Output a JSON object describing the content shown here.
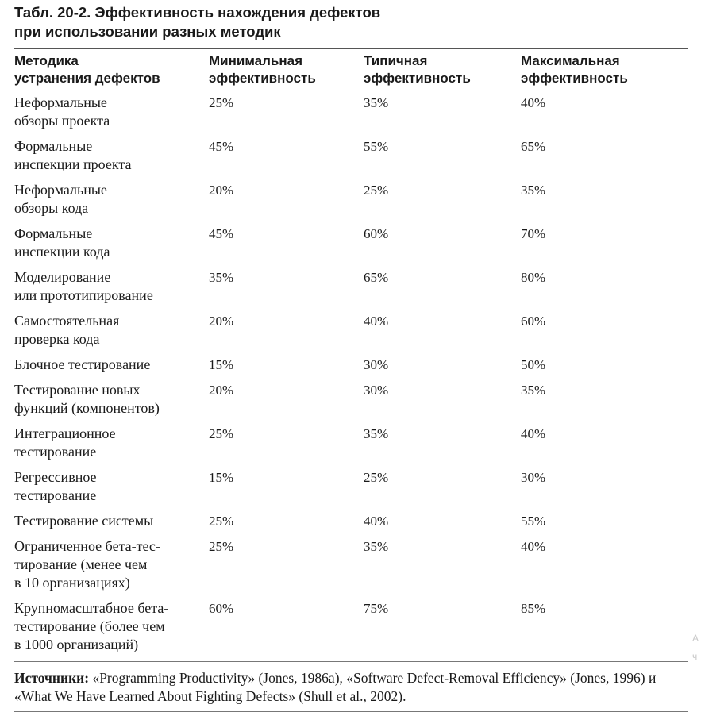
{
  "title": {
    "line1": "Табл. 20-2.   Эффективность нахождения дефектов",
    "line2": "при использовании разных методик"
  },
  "table": {
    "headers": [
      {
        "line1": "Методика",
        "line2": "устранения дефектов"
      },
      {
        "line1": "Минимальная",
        "line2": "эффективность"
      },
      {
        "line1": "Типичная",
        "line2": "эффективность"
      },
      {
        "line1": "Максимальная",
        "line2": "эффективность"
      }
    ],
    "rows": [
      {
        "method": [
          "Неформальные",
          "обзоры проекта"
        ],
        "min": "25%",
        "typ": "35%",
        "max": "40%"
      },
      {
        "method": [
          "Формальные",
          "инспекции проекта"
        ],
        "min": "45%",
        "typ": "55%",
        "max": "65%"
      },
      {
        "method": [
          "Неформальные",
          "обзоры кода"
        ],
        "min": "20%",
        "typ": "25%",
        "max": "35%"
      },
      {
        "method": [
          "Формальные",
          "инспекции кода"
        ],
        "min": "45%",
        "typ": "60%",
        "max": "70%"
      },
      {
        "method": [
          "Моделирование",
          "или прототипирование"
        ],
        "min": "35%",
        "typ": "65%",
        "max": "80%"
      },
      {
        "method": [
          "Самостоятельная",
          "проверка кода"
        ],
        "min": "20%",
        "typ": "40%",
        "max": "60%"
      },
      {
        "method": [
          "Блочное тестирование"
        ],
        "min": "15%",
        "typ": "30%",
        "max": "50%"
      },
      {
        "method": [
          "Тестирование новых",
          "функций (компонентов)"
        ],
        "min": "20%",
        "typ": "30%",
        "max": "35%"
      },
      {
        "method": [
          "Интеграционное",
          "тестирование"
        ],
        "min": "25%",
        "typ": "35%",
        "max": "40%"
      },
      {
        "method": [
          "Регрессивное",
          "тестирование"
        ],
        "min": "15%",
        "typ": "25%",
        "max": "30%"
      },
      {
        "method": [
          "Тестирование системы"
        ],
        "min": "25%",
        "typ": "40%",
        "max": "55%"
      },
      {
        "method": [
          "Ограниченное бета-тес-",
          "тирование (менее чем",
          "в 10 организациях)"
        ],
        "min": "25%",
        "typ": "35%",
        "max": "40%"
      },
      {
        "method": [
          "Крупномасштабное бета-",
          "тестирование (более чем",
          "в 1000 организаций)"
        ],
        "min": "60%",
        "typ": "75%",
        "max": "85%"
      }
    ]
  },
  "sources": {
    "label": "Источники:",
    "text": " «Programming Productivity» (Jones, 1986a), «Software Defect-Removal Efficiency» (Jones, 1996) и «What We Have Learned About Fighting Defects» (Shull et al., 2002)."
  },
  "edge_fragments": [
    "А",
    "ч"
  ]
}
